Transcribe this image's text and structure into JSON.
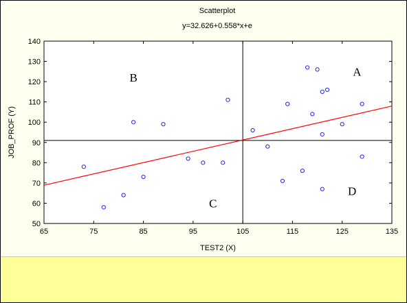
{
  "chart_data": {
    "type": "scatter",
    "title": "Scatterplot",
    "subtitle": "y=32.626+0.558*x+e",
    "xlabel": "TEST2 (X)",
    "ylabel": "JOB_PROF (Y)",
    "xlim": [
      65,
      135
    ],
    "ylim": [
      50,
      140
    ],
    "xticks": [
      "65",
      "75",
      "85",
      "95",
      "105",
      "115",
      "125",
      "135"
    ],
    "yticks": [
      "50",
      "60",
      "70",
      "80",
      "90",
      "100",
      "110",
      "120",
      "130",
      "140"
    ],
    "grid": false,
    "series": [
      {
        "x": [
          73,
          77,
          81,
          83,
          85,
          89,
          94,
          97,
          101,
          102,
          107,
          110,
          113,
          114,
          117,
          118,
          119,
          120,
          121,
          121,
          121,
          122,
          125,
          129,
          129
        ],
        "y": [
          78,
          58,
          64,
          100,
          73,
          99,
          82,
          80,
          80,
          111,
          96,
          88,
          71,
          109,
          76,
          127,
          104,
          126,
          115,
          94,
          67,
          116,
          99,
          109,
          83
        ]
      }
    ],
    "fit_line": {
      "intercept": 32.626,
      "slope": 0.558
    },
    "reference_lines": {
      "x": 105,
      "y": 91
    },
    "quadrant_labels": [
      {
        "text": "A",
        "x": 128,
        "y": 125
      },
      {
        "text": "B",
        "x": 83,
        "y": 122
      },
      {
        "text": "C",
        "x": 99,
        "y": 60
      },
      {
        "text": "D",
        "x": 127,
        "y": 66
      }
    ],
    "colors": {
      "points": "#2020ff",
      "fit_line": "#ff0000",
      "reference_lines": "#000000",
      "background": "#fffff0",
      "note_panel": "#ffff99"
    }
  }
}
